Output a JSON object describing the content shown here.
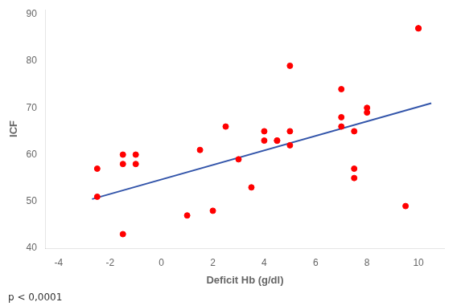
{
  "chart_data": {
    "type": "scatter",
    "xlabel": "Deficit Hb (g/dl)",
    "ylabel": "ICF",
    "annotation": "p < 0,0001",
    "series": [
      {
        "type": "scatter",
        "color": "#FF0000",
        "x": [
          -2.5,
          -2.5,
          -1.5,
          -1.5,
          -1.5,
          -1.0,
          -1.0,
          1.0,
          1.5,
          2.0,
          2.5,
          3.0,
          3.5,
          4.0,
          4.0,
          4.5,
          4.5,
          5.0,
          5.0,
          5.0,
          7.0,
          7.0,
          7.0,
          7.5,
          7.5,
          7.5,
          8.0,
          8.0,
          9.5,
          10.0,
          10.0
        ],
        "values": [
          51,
          57,
          43,
          58,
          60,
          58,
          60,
          47,
          61,
          48,
          66,
          59,
          53,
          63,
          65,
          63,
          63,
          62,
          65,
          79,
          66,
          68,
          74,
          55,
          57,
          65,
          70,
          69,
          49,
          87,
          87
        ]
      },
      {
        "type": "line",
        "color": "#3355AA",
        "x": [
          -2.7,
          10.5
        ],
        "values": [
          50.5,
          71.0
        ]
      }
    ],
    "xlim": [
      -4.5,
      11.0
    ],
    "ylim": [
      40,
      91
    ],
    "xticks": [
      -4,
      -2,
      0,
      2,
      4,
      6,
      8,
      10
    ],
    "yticks": [
      40,
      50,
      60,
      70,
      80,
      90
    ],
    "grid": false
  }
}
